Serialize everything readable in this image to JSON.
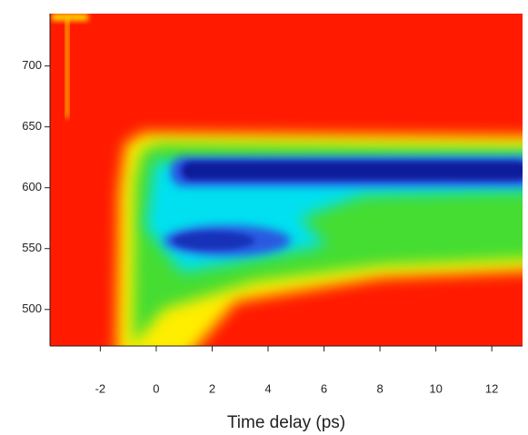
{
  "chart_data": {
    "type": "heatmap",
    "x_label": "Time delay (ps)",
    "xlim": [
      -3.8,
      13.1
    ],
    "xticks": [
      -2,
      0,
      2,
      4,
      6,
      8,
      10,
      12
    ],
    "ylim": [
      470,
      743
    ],
    "yticks": [
      500,
      550,
      600,
      650,
      700
    ]
  }
}
